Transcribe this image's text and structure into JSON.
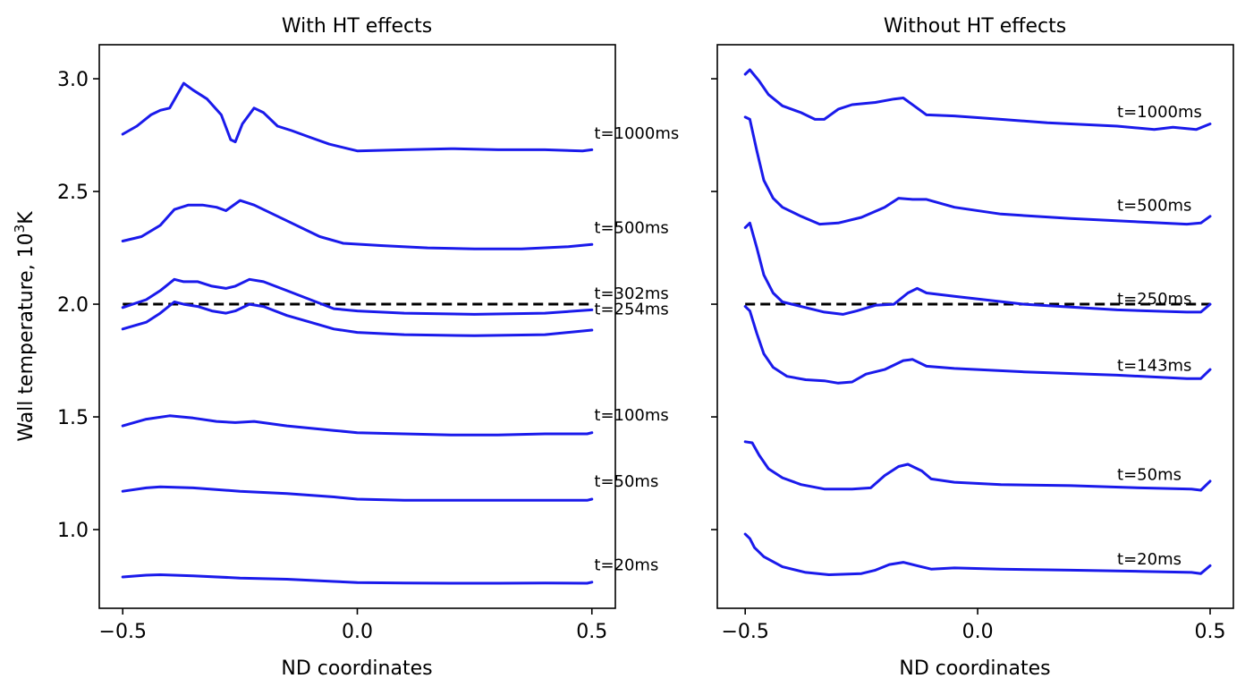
{
  "chart_data": [
    {
      "type": "line",
      "title": "With HT effects",
      "xlabel": "ND coordinates",
      "ylabel": "Wall temperature, 10³K",
      "ylabel_base": "Wall temperature, 10",
      "ylabel_sup": "3",
      "ylabel_unit": "K",
      "xlim": [
        -0.55,
        0.55
      ],
      "ylim": [
        0.651,
        3.151
      ],
      "xticks": [
        -0.5,
        0.0,
        0.5
      ],
      "xtick_labels": [
        "−0.5",
        "0.0",
        "0.5"
      ],
      "yticks": [
        1.0,
        1.5,
        2.0,
        2.5,
        3.0
      ],
      "ytick_labels": [
        "1.0",
        "1.5",
        "2.0",
        "2.5",
        "3.0"
      ],
      "show_ytick_labels": true,
      "grid": false,
      "line_color": "#1a1aeb",
      "reference_line": {
        "y": 2.0,
        "style": "dashed",
        "color": "#000000"
      },
      "series": [
        {
          "name": "t=1000ms",
          "x": [
            -0.5,
            -0.47,
            -0.44,
            -0.42,
            -0.4,
            -0.37,
            -0.35,
            -0.32,
            -0.29,
            -0.27,
            -0.26,
            -0.245,
            -0.22,
            -0.2,
            -0.17,
            -0.14,
            -0.1,
            -0.06,
            -0.02,
            0.0,
            0.1,
            0.2,
            0.3,
            0.4,
            0.48,
            0.5
          ],
          "y": [
            2.754,
            2.79,
            2.84,
            2.86,
            2.87,
            2.98,
            2.95,
            2.91,
            2.84,
            2.73,
            2.72,
            2.8,
            2.87,
            2.85,
            2.79,
            2.77,
            2.74,
            2.71,
            2.69,
            2.68,
            2.685,
            2.69,
            2.685,
            2.685,
            2.68,
            2.685
          ]
        },
        {
          "name": "t=500ms",
          "x": [
            -0.5,
            -0.46,
            -0.42,
            -0.39,
            -0.36,
            -0.33,
            -0.3,
            -0.28,
            -0.25,
            -0.22,
            -0.15,
            -0.08,
            -0.03,
            0.05,
            0.15,
            0.25,
            0.35,
            0.45,
            0.5
          ],
          "y": [
            2.28,
            2.3,
            2.35,
            2.42,
            2.44,
            2.44,
            2.43,
            2.415,
            2.46,
            2.44,
            2.37,
            2.3,
            2.27,
            2.26,
            2.25,
            2.245,
            2.245,
            2.255,
            2.265
          ]
        },
        {
          "name": "t=302ms",
          "x": [
            -0.5,
            -0.45,
            -0.42,
            -0.39,
            -0.37,
            -0.34,
            -0.31,
            -0.28,
            -0.26,
            -0.23,
            -0.2,
            -0.15,
            -0.1,
            -0.05,
            0.0,
            0.1,
            0.25,
            0.4,
            0.5
          ],
          "y": [
            1.985,
            2.02,
            2.06,
            2.11,
            2.1,
            2.1,
            2.08,
            2.07,
            2.08,
            2.11,
            2.1,
            2.06,
            2.02,
            1.98,
            1.97,
            1.96,
            1.955,
            1.96,
            1.975
          ]
        },
        {
          "name": "t=254ms",
          "x": [
            -0.5,
            -0.45,
            -0.42,
            -0.39,
            -0.37,
            -0.34,
            -0.31,
            -0.28,
            -0.26,
            -0.23,
            -0.2,
            -0.15,
            -0.1,
            -0.05,
            0.0,
            0.1,
            0.25,
            0.4,
            0.5
          ],
          "y": [
            1.89,
            1.92,
            1.96,
            2.01,
            2.0,
            1.99,
            1.97,
            1.96,
            1.97,
            2.0,
            1.99,
            1.95,
            1.92,
            1.89,
            1.875,
            1.865,
            1.86,
            1.865,
            1.885
          ]
        },
        {
          "name": "t=100ms",
          "x": [
            -0.5,
            -0.45,
            -0.4,
            -0.35,
            -0.3,
            -0.26,
            -0.22,
            -0.15,
            -0.05,
            0.0,
            0.1,
            0.2,
            0.3,
            0.4,
            0.49,
            0.5
          ],
          "y": [
            1.46,
            1.49,
            1.505,
            1.495,
            1.48,
            1.475,
            1.48,
            1.46,
            1.44,
            1.43,
            1.425,
            1.42,
            1.42,
            1.425,
            1.425,
            1.43
          ]
        },
        {
          "name": "t=50ms",
          "x": [
            -0.5,
            -0.45,
            -0.42,
            -0.35,
            -0.25,
            -0.15,
            -0.05,
            0.0,
            0.1,
            0.2,
            0.3,
            0.4,
            0.49,
            0.5
          ],
          "y": [
            1.17,
            1.185,
            1.19,
            1.185,
            1.17,
            1.16,
            1.145,
            1.135,
            1.13,
            1.13,
            1.13,
            1.13,
            1.13,
            1.135
          ]
        },
        {
          "name": "t=20ms",
          "x": [
            -0.5,
            -0.45,
            -0.42,
            -0.35,
            -0.25,
            -0.15,
            -0.05,
            0.0,
            0.1,
            0.2,
            0.3,
            0.4,
            0.49,
            0.5
          ],
          "y": [
            0.79,
            0.798,
            0.8,
            0.795,
            0.785,
            0.78,
            0.77,
            0.765,
            0.763,
            0.762,
            0.762,
            0.763,
            0.762,
            0.767
          ]
        }
      ],
      "labels": [
        {
          "text": "t=1000ms",
          "x": 0.505,
          "y": 2.735
        },
        {
          "text": "t=500ms",
          "x": 0.505,
          "y": 2.315
        },
        {
          "text": "t=302ms",
          "x": 0.505,
          "y": 2.025
        },
        {
          "text": "t=254ms",
          "x": 0.505,
          "y": 1.955
        },
        {
          "text": "t=100ms",
          "x": 0.505,
          "y": 1.485
        },
        {
          "text": "t=50ms",
          "x": 0.505,
          "y": 1.19
        },
        {
          "text": "t=20ms",
          "x": 0.505,
          "y": 0.82
        }
      ]
    },
    {
      "type": "line",
      "title": "Without HT effects",
      "xlabel": "ND coordinates",
      "ylabel": "",
      "xlim": [
        -0.56,
        0.55
      ],
      "ylim": [
        0.651,
        3.151
      ],
      "xticks": [
        -0.5,
        0.0,
        0.5
      ],
      "xtick_labels": [
        "−0.5",
        "0.0",
        "0.5"
      ],
      "yticks": [
        1.0,
        1.5,
        2.0,
        2.5,
        3.0
      ],
      "ytick_labels": [
        "1.0",
        "1.5",
        "2.0",
        "2.5",
        "3.0"
      ],
      "show_ytick_labels": false,
      "grid": false,
      "line_color": "#1a1aeb",
      "reference_line": {
        "y": 2.0,
        "style": "dashed",
        "color": "#000000"
      },
      "series": [
        {
          "name": "t=1000ms",
          "x": [
            -0.5,
            -0.49,
            -0.47,
            -0.45,
            -0.42,
            -0.38,
            -0.35,
            -0.33,
            -0.3,
            -0.27,
            -0.22,
            -0.18,
            -0.16,
            -0.13,
            -0.11,
            -0.05,
            0.05,
            0.15,
            0.3,
            0.38,
            0.42,
            0.47,
            0.5
          ],
          "y": [
            3.02,
            3.04,
            2.99,
            2.93,
            2.88,
            2.85,
            2.82,
            2.82,
            2.865,
            2.885,
            2.895,
            2.91,
            2.915,
            2.87,
            2.84,
            2.835,
            2.82,
            2.805,
            2.79,
            2.775,
            2.785,
            2.775,
            2.8
          ]
        },
        {
          "name": "t=500ms",
          "x": [
            -0.5,
            -0.49,
            -0.475,
            -0.46,
            -0.44,
            -0.42,
            -0.38,
            -0.34,
            -0.3,
            -0.25,
            -0.2,
            -0.17,
            -0.14,
            -0.11,
            -0.05,
            0.05,
            0.2,
            0.35,
            0.45,
            0.48,
            0.5
          ],
          "y": [
            2.83,
            2.82,
            2.68,
            2.55,
            2.47,
            2.43,
            2.39,
            2.355,
            2.36,
            2.385,
            2.43,
            2.47,
            2.465,
            2.465,
            2.43,
            2.4,
            2.38,
            2.365,
            2.355,
            2.36,
            2.39
          ]
        },
        {
          "name": "t=250ms",
          "x": [
            -0.5,
            -0.49,
            -0.475,
            -0.46,
            -0.44,
            -0.42,
            -0.38,
            -0.33,
            -0.29,
            -0.26,
            -0.22,
            -0.18,
            -0.15,
            -0.13,
            -0.11,
            -0.05,
            0.1,
            0.3,
            0.45,
            0.48,
            0.5
          ],
          "y": [
            2.34,
            2.36,
            2.25,
            2.13,
            2.05,
            2.01,
            1.99,
            1.965,
            1.955,
            1.97,
            1.995,
            2.0,
            2.05,
            2.07,
            2.05,
            2.035,
            2.0,
            1.975,
            1.965,
            1.965,
            2.0
          ]
        },
        {
          "name": "t=143ms",
          "x": [
            -0.5,
            -0.49,
            -0.475,
            -0.46,
            -0.44,
            -0.41,
            -0.37,
            -0.33,
            -0.3,
            -0.27,
            -0.24,
            -0.2,
            -0.16,
            -0.14,
            -0.11,
            -0.05,
            0.1,
            0.3,
            0.45,
            0.48,
            0.5
          ],
          "y": [
            1.99,
            1.97,
            1.87,
            1.78,
            1.72,
            1.68,
            1.665,
            1.66,
            1.65,
            1.655,
            1.69,
            1.71,
            1.75,
            1.755,
            1.725,
            1.715,
            1.7,
            1.685,
            1.67,
            1.67,
            1.71
          ]
        },
        {
          "name": "t=50ms",
          "x": [
            -0.5,
            -0.485,
            -0.47,
            -0.45,
            -0.42,
            -0.38,
            -0.33,
            -0.27,
            -0.23,
            -0.2,
            -0.17,
            -0.15,
            -0.12,
            -0.1,
            -0.05,
            0.05,
            0.2,
            0.35,
            0.46,
            0.48,
            0.5
          ],
          "y": [
            1.39,
            1.385,
            1.33,
            1.27,
            1.23,
            1.2,
            1.18,
            1.18,
            1.185,
            1.24,
            1.28,
            1.29,
            1.26,
            1.225,
            1.21,
            1.2,
            1.195,
            1.185,
            1.18,
            1.175,
            1.215
          ]
        },
        {
          "name": "t=20ms",
          "x": [
            -0.5,
            -0.49,
            -0.48,
            -0.46,
            -0.42,
            -0.37,
            -0.32,
            -0.25,
            -0.22,
            -0.19,
            -0.16,
            -0.13,
            -0.1,
            -0.05,
            0.05,
            0.2,
            0.35,
            0.46,
            0.48,
            0.5
          ],
          "y": [
            0.98,
            0.96,
            0.92,
            0.88,
            0.835,
            0.81,
            0.8,
            0.805,
            0.82,
            0.845,
            0.855,
            0.84,
            0.825,
            0.83,
            0.825,
            0.82,
            0.815,
            0.81,
            0.805,
            0.84
          ]
        }
      ],
      "labels": [
        {
          "text": "t=1000ms",
          "x": 0.3,
          "y": 2.83
        },
        {
          "text": "t=500ms",
          "x": 0.3,
          "y": 2.415
        },
        {
          "text": "t=250ms",
          "x": 0.3,
          "y": 2.0
        },
        {
          "text": "t=143ms",
          "x": 0.3,
          "y": 1.705
        },
        {
          "text": "t=50ms",
          "x": 0.3,
          "y": 1.22
        },
        {
          "text": "t=20ms",
          "x": 0.3,
          "y": 0.845
        }
      ]
    }
  ]
}
